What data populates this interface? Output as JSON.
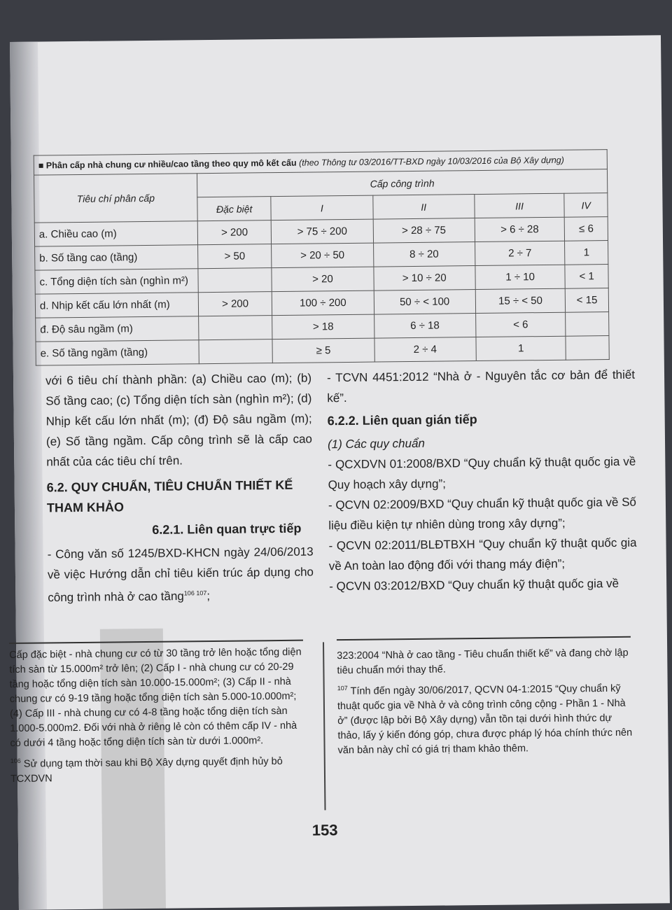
{
  "table": {
    "title": "Phân cấp nhà chung cư nhiều/cao tầng theo quy mô kết cấu",
    "title_note": "(theo Thông tư 03/2016/TT-BXD ngày 10/03/2016 của Bộ Xây dựng)",
    "criteria_header": "Tiêu chí phân cấp",
    "group_header": "Cấp công trình",
    "columns": [
      "Đặc biệt",
      "I",
      "II",
      "III",
      "IV"
    ],
    "rows": [
      {
        "label": "a. Chiều cao (m)",
        "cells": [
          "> 200",
          "> 75 ÷ 200",
          "> 28 ÷ 75",
          "> 6 ÷ 28",
          "≤ 6"
        ]
      },
      {
        "label": "b. Số tầng cao (tầng)",
        "cells": [
          "> 50",
          "> 20 ÷ 50",
          "8 ÷ 20",
          "2 ÷ 7",
          "1"
        ]
      },
      {
        "label": "c. Tổng diện tích sàn (nghìn m²)",
        "cells": [
          "",
          "> 20",
          "> 10 ÷ 20",
          "1 ÷ 10",
          "< 1"
        ]
      },
      {
        "label": "d. Nhịp kết cấu lớn nhất (m)",
        "cells": [
          "> 200",
          "100 ÷ 200",
          "50 ÷ < 100",
          "15 ÷ < 50",
          "< 15"
        ]
      },
      {
        "label": "đ. Độ sâu ngầm (m)",
        "cells": [
          "",
          "> 18",
          "6 ÷ 18",
          "< 6",
          ""
        ]
      },
      {
        "label": "e. Số tầng ngầm (tầng)",
        "cells": [
          "",
          "≥ 5",
          "2 ÷ 4",
          "1",
          ""
        ]
      }
    ]
  },
  "left": {
    "p1": "với 6 tiêu chí thành phần: (a) Chiều cao (m); (b) Số tầng cao; (c) Tổng diện tích sàn (nghìn m²); (d) Nhịp kết cấu lớn nhất (m); (đ) Độ sâu ngầm (m); (e) Số tầng ngầm. Cấp công trình sẽ là cấp cao nhất của các tiêu chí trên.",
    "h2": "6.2. QUY CHUẨN, TIÊU CHUẨN THIẾT KẾ THAM KHẢO",
    "h3": "6.2.1. Liên quan trực tiếp",
    "p2": "- Công văn số 1245/BXD-KHCN ngày 24/06/2013 về việc Hướng dẫn chỉ tiêu kiến trúc áp dụng cho công trình nhà ở cao tầng",
    "p2_refs": "106 107",
    "p2_end": ";"
  },
  "right": {
    "p1": "- TCVN 4451:2012 “Nhà ở - Nguyên tắc cơ bản để thiết kế”.",
    "h3": "6.2.2. Liên quan gián tiếp",
    "sub": "(1) Các quy chuẩn",
    "items": [
      "- QCXDVN 01:2008/BXD “Quy chuẩn kỹ thuật quốc gia về Quy hoạch xây dựng”;",
      "- QCVN 02:2009/BXD “Quy chuẩn kỹ thuật quốc gia về Số liệu điều kiện tự nhiên dùng trong xây dựng”;",
      "- QCVN 02:2011/BLĐTBXH “Quy chuẩn kỹ thuật quốc gia về An toàn lao động đối với thang máy điện”;",
      "- QCVN 03:2012/BXD “Quy chuẩn kỹ thuật quốc gia về"
    ]
  },
  "footnotes": {
    "left_cont": "Cấp đặc biệt - nhà chung cư có từ 30 tầng trở lên hoặc tổng diện tích sàn từ 15.000m² trở lên; (2) Cấp I - nhà chung cư có 20-29 tầng hoặc tổng diện tích sàn 10.000-15.000m²; (3) Cấp II - nhà chung cư có 9-19 tầng hoặc tổng diện tích sàn 5.000-10.000m²; (4) Cấp III - nhà chung cư có 4-8 tầng hoặc tổng diện tích sàn 1.000-5.000m2. Đối với nhà ở riêng lẻ còn có thêm cấp IV - nhà có dưới 4 tầng hoặc tổng diện tích sàn từ dưới 1.000m².",
    "fn106_num": "106",
    "fn106": "Sử dụng tạm thời sau khi Bộ Xây dựng quyết định hủy bỏ TCXDVN",
    "right_cont": "323:2004 “Nhà ở cao tầng - Tiêu chuẩn thiết kế” và đang chờ lập tiêu chuẩn mới thay thế.",
    "fn107_num": "107",
    "fn107": "Tính đến ngày 30/06/2017, QCVN 04-1:2015 “Quy chuẩn kỹ thuật quốc gia về Nhà ở và công trình công cộng - Phần 1 - Nhà ở” (được lập bởi Bộ Xây dựng) vẫn tồn tại dưới hình thức dự thảo, lấy ý kiến đóng góp, chưa được pháp lý hóa chính thức nên văn bản này chỉ có giá trị tham khảo thêm."
  },
  "page_number": "153"
}
